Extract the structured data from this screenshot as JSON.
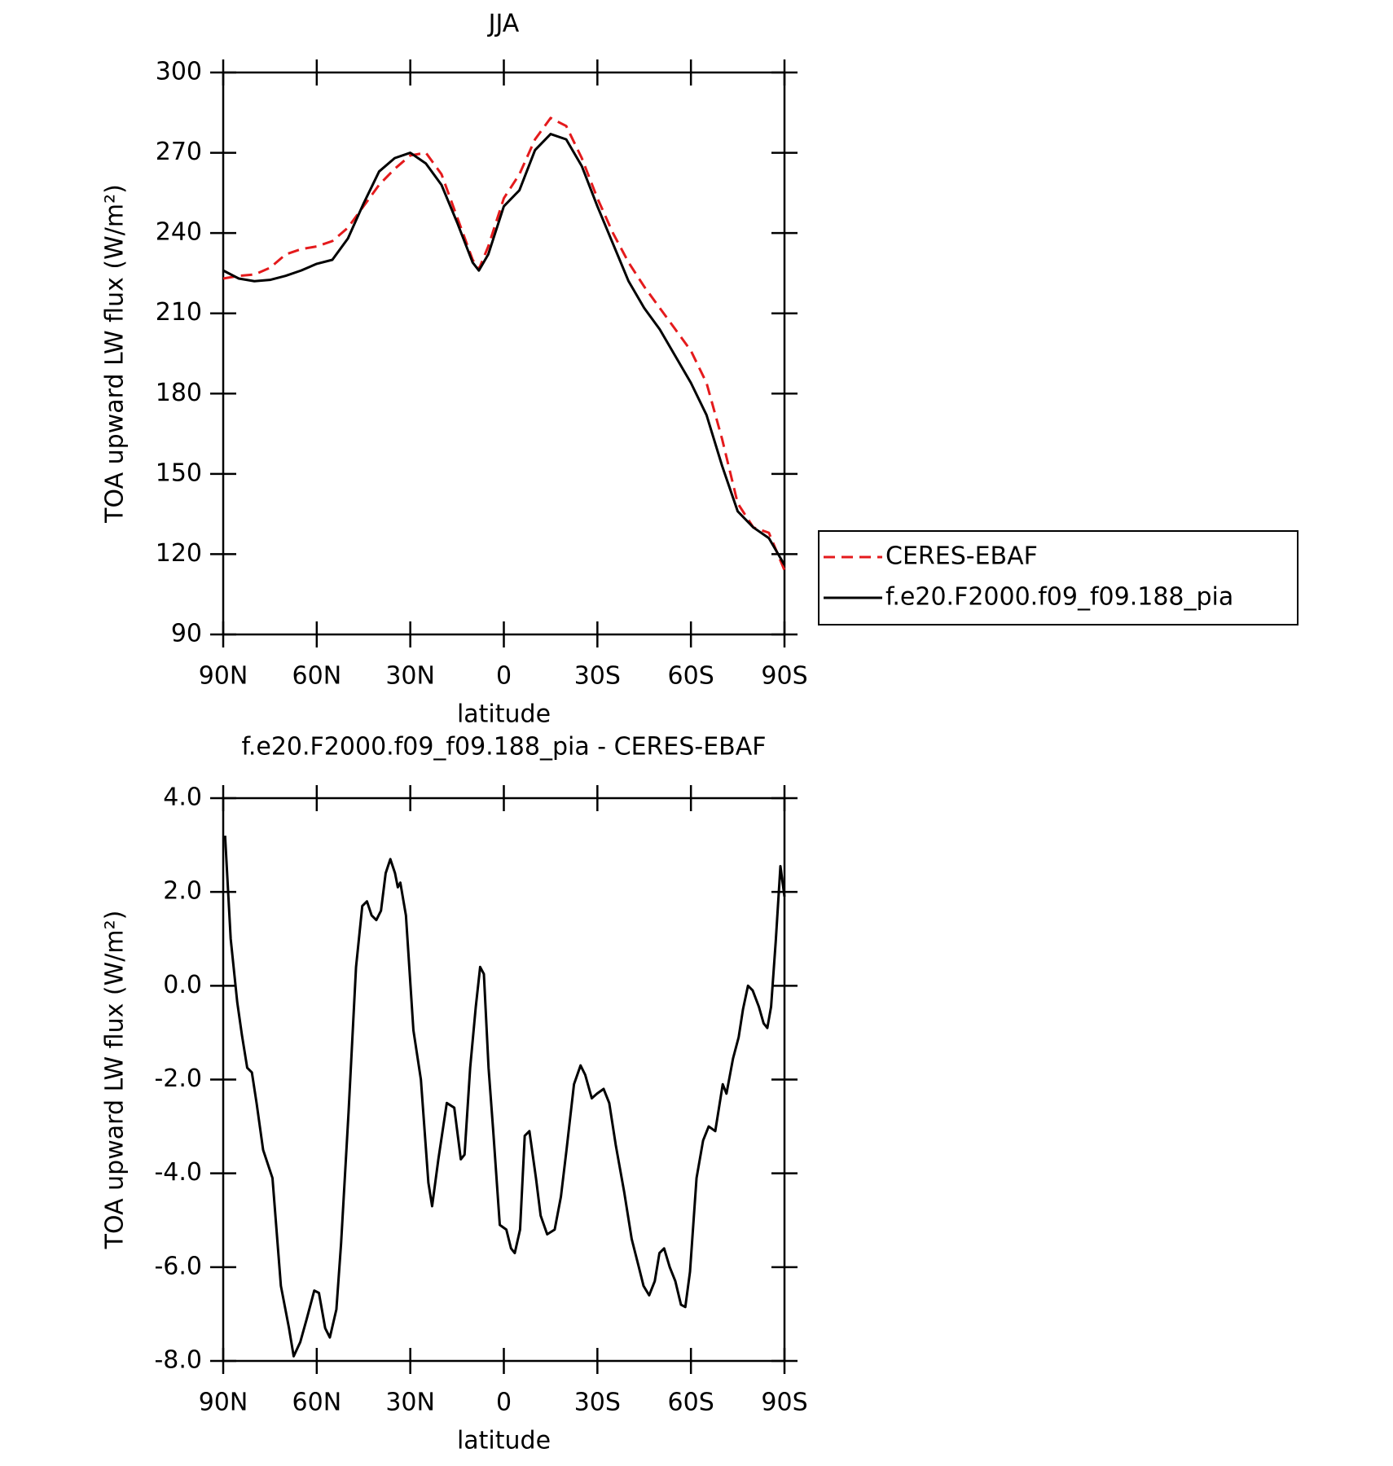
{
  "chart_data": [
    {
      "type": "line",
      "title": "JJA",
      "x_label": "latitude",
      "y_label": "TOA upward LW flux (W/m²)",
      "xlim": [
        90,
        -90
      ],
      "xticks": [
        {
          "value": 90,
          "label": "90N"
        },
        {
          "value": 60,
          "label": "60N"
        },
        {
          "value": 30,
          "label": "30N"
        },
        0,
        {
          "value": -30,
          "label": "30S"
        },
        {
          "value": -60,
          "label": "60S"
        },
        {
          "value": -90,
          "label": "90S"
        }
      ],
      "ylim": [
        90,
        300
      ],
      "yticks": [
        90,
        120,
        150,
        180,
        210,
        240,
        270,
        300
      ],
      "legend": "outside right",
      "x": [
        90,
        85,
        80,
        75,
        70,
        65,
        60,
        55,
        50,
        45,
        40,
        35,
        30,
        25,
        20,
        15,
        10,
        8,
        5,
        0,
        -5,
        -10,
        -15,
        -20,
        -25,
        -30,
        -35,
        -40,
        -45,
        -50,
        -55,
        -60,
        -65,
        -70,
        -75,
        -80,
        -85,
        -90
      ],
      "series": [
        {
          "name": "CERES-EBAF",
          "color": "#e41a1c",
          "line_style": "dashed",
          "values": [
            223,
            224,
            224.5,
            227,
            232,
            234,
            235,
            237,
            242,
            250,
            258,
            264,
            269,
            270,
            262,
            246,
            230,
            226.5,
            235,
            253,
            262,
            275,
            283,
            280,
            268,
            253,
            240,
            229,
            220,
            212,
            204,
            196,
            184,
            163,
            139,
            130,
            128,
            114
          ]
        },
        {
          "name": "f.e20.F2000.f09_f09.188_pia",
          "color": "#000000",
          "line_style": "solid",
          "values": [
            226,
            223,
            222,
            222.5,
            224,
            226,
            228.5,
            230,
            238,
            251,
            263,
            268,
            270,
            266,
            258,
            244,
            229,
            226,
            232,
            250,
            256,
            271,
            277,
            275,
            265,
            250,
            236,
            222,
            212,
            204,
            194,
            184,
            172,
            153,
            136,
            130,
            126,
            116
          ]
        }
      ]
    },
    {
      "type": "line",
      "title": "f.e20.F2000.f09_f09.188_pia - CERES-EBAF",
      "x_label": "latitude",
      "y_label": "TOA upward LW flux (W/m²)",
      "xlim": [
        90,
        -90
      ],
      "xticks": [
        {
          "value": 90,
          "label": "90N"
        },
        {
          "value": 60,
          "label": "60N"
        },
        {
          "value": 30,
          "label": "30N"
        },
        0,
        {
          "value": -30,
          "label": "30S"
        },
        {
          "value": -60,
          "label": "60S"
        },
        {
          "value": -90,
          "label": "90S"
        }
      ],
      "ylim": [
        -8,
        4
      ],
      "yticks": [
        {
          "value": -8,
          "label": "-8.0"
        },
        {
          "value": -6,
          "label": "-6.0"
        },
        {
          "value": -4,
          "label": "-4.0"
        },
        {
          "value": -2,
          "label": "-2.0"
        },
        {
          "value": 0,
          "label": "0.0"
        },
        {
          "value": 2,
          "label": "2.0"
        },
        {
          "value": 4,
          "label": "4.0"
        }
      ],
      "x": [
        89.4,
        87.6,
        85.5,
        84,
        82.3,
        80.8,
        79.3,
        77.2,
        74.2,
        71.5,
        68.9,
        67.4,
        65.3,
        63.2,
        60.8,
        59.3,
        57.3,
        55.8,
        53.7,
        52.2,
        49.8,
        47.4,
        45.4,
        43.9,
        42.4,
        40.9,
        39.4,
        37.9,
        36.4,
        34.9,
        34,
        33.2,
        31.4,
        29,
        26.6,
        24.2,
        23,
        21,
        18.3,
        15.9,
        13.8,
        12.6,
        10.8,
        9,
        7.6,
        6.4,
        4.9,
        3.4,
        1.3,
        -0.8,
        -2.3,
        -3.5,
        -5.2,
        -6.7,
        -8.2,
        -10.3,
        -11.8,
        -13.9,
        -16.3,
        -18.3,
        -20.1,
        -22.5,
        -24.6,
        -26.1,
        -28.2,
        -29.9,
        -32,
        -33.8,
        -35.9,
        -38.6,
        -41,
        -43.3,
        -44.8,
        -46.6,
        -48.4,
        -49.9,
        -51.4,
        -53.2,
        -55,
        -56.8,
        -58.2,
        -59.7,
        -61.8,
        -63.9,
        -65.7,
        -67.8,
        -70.2,
        -71.4,
        -73.5,
        -75.3,
        -76.7,
        -78.3,
        -79.8,
        -81.8,
        -83.3,
        -84.5,
        -85.7,
        -87.2,
        -88.7,
        -90
      ],
      "series": [
        {
          "color": "#000000",
          "line_style": "solid",
          "values": [
            3.2,
            1.0,
            -0.35,
            -1.05,
            -1.75,
            -1.85,
            -2.5,
            -3.5,
            -4.1,
            -6.4,
            -7.3,
            -7.9,
            -7.6,
            -7.1,
            -6.5,
            -6.55,
            -7.3,
            -7.5,
            -6.9,
            -5.5,
            -2.7,
            0.4,
            1.7,
            1.8,
            1.5,
            1.4,
            1.6,
            2.4,
            2.7,
            2.4,
            2.1,
            2.2,
            1.5,
            -0.95,
            -2.0,
            -4.2,
            -4.7,
            -3.7,
            -2.5,
            -2.6,
            -3.7,
            -3.6,
            -1.75,
            -0.45,
            0.4,
            0.25,
            -1.75,
            -3.1,
            -5.1,
            -5.2,
            -5.6,
            -5.7,
            -5.2,
            -3.2,
            -3.1,
            -4.1,
            -4.9,
            -5.3,
            -5.2,
            -4.5,
            -3.5,
            -2.1,
            -1.7,
            -1.9,
            -2.4,
            -2.3,
            -2.2,
            -2.5,
            -3.4,
            -4.4,
            -5.4,
            -6.0,
            -6.4,
            -6.6,
            -6.3,
            -5.7,
            -5.6,
            -6.0,
            -6.3,
            -6.8,
            -6.85,
            -6.1,
            -4.1,
            -3.3,
            -3.0,
            -3.1,
            -2.1,
            -2.3,
            -1.55,
            -1.1,
            -0.5,
            0.0,
            -0.1,
            -0.45,
            -0.8,
            -0.9,
            -0.45,
            0.95,
            2.55,
            1.9
          ]
        }
      ]
    }
  ]
}
